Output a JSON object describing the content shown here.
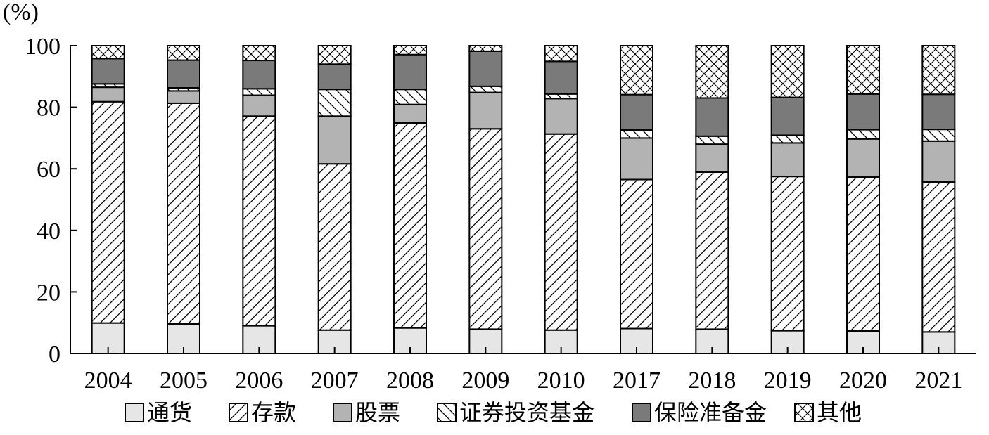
{
  "chart_data": {
    "type": "bar",
    "stacked": true,
    "y_unit_label": "(%)",
    "ylim": [
      0,
      100
    ],
    "y_ticks": [
      0,
      20,
      40,
      60,
      80,
      100
    ],
    "categories": [
      "2004",
      "2005",
      "2006",
      "2007",
      "2008",
      "2009",
      "2010",
      "2017",
      "2018",
      "2019",
      "2020",
      "2021"
    ],
    "series": [
      {
        "name": "通货",
        "pattern": "light",
        "values": [
          9.9,
          9.6,
          9.0,
          7.6,
          8.3,
          7.9,
          7.6,
          8.1,
          7.9,
          7.4,
          7.3,
          7.0
        ]
      },
      {
        "name": "存款",
        "pattern": "diag",
        "values": [
          71.9,
          71.7,
          68.1,
          54.0,
          66.6,
          65.1,
          63.7,
          48.4,
          51.0,
          50.1,
          50.0,
          48.7
        ]
      },
      {
        "name": "股票",
        "pattern": "gray",
        "values": [
          4.7,
          4.0,
          6.8,
          15.5,
          6.0,
          11.8,
          11.5,
          13.5,
          9.1,
          10.9,
          12.4,
          13.3
        ]
      },
      {
        "name": "证券投资基金",
        "pattern": "wide",
        "values": [
          1.1,
          1.0,
          2.1,
          8.7,
          4.9,
          2.0,
          1.5,
          2.6,
          2.6,
          2.5,
          3.0,
          3.8
        ]
      },
      {
        "name": "保险准备金",
        "pattern": "dark",
        "values": [
          8.2,
          9.0,
          9.2,
          8.2,
          11.3,
          11.4,
          10.6,
          11.5,
          12.4,
          12.3,
          11.6,
          11.4
        ]
      },
      {
        "name": "其他",
        "pattern": "cross",
        "values": [
          4.2,
          4.7,
          4.8,
          6.0,
          2.9,
          1.8,
          5.1,
          15.9,
          17.0,
          16.8,
          15.7,
          15.8
        ]
      }
    ],
    "colors": {
      "light": "#e6e6e6",
      "gray": "#b3b3b3",
      "dark": "#7a7a7a",
      "stroke": "#000000"
    },
    "grid": false,
    "legend_position": "bottom"
  }
}
